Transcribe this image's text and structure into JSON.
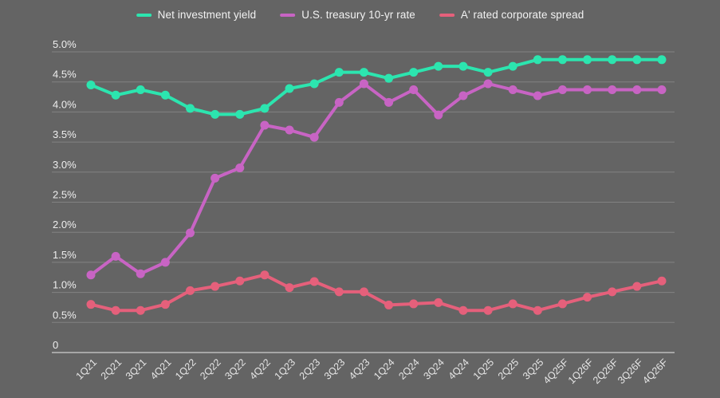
{
  "colors": {
    "background": "#646464",
    "gridline": "#828282",
    "baseline": "#bcbcbc",
    "y_tick_text": "#eeeeee",
    "x_tick_text": "#e6e6e6",
    "legend_text": "#f2f2f2",
    "series_teal": "#2ce5af",
    "series_purple": "#c864c4",
    "series_pink": "#e5607b"
  },
  "legend": {
    "items": [
      {
        "label": "Net investment yield",
        "color": "#2ce5af"
      },
      {
        "label": "U.S. treasury 10-yr rate",
        "color": "#c864c4"
      },
      {
        "label": "A' rated corporate spread",
        "color": "#e5607b"
      }
    ]
  },
  "axes": {
    "y_tick_labels": [
      "5.0%",
      "4.5%",
      "4.0%",
      "3.5%",
      "3.0%",
      "2.5%",
      "2.0%",
      "1.5%",
      "1.0%",
      "0.5%",
      "0"
    ],
    "y_tick_values": [
      5.0,
      4.5,
      4.0,
      3.5,
      3.0,
      2.5,
      2.0,
      1.5,
      1.0,
      0.5,
      0
    ]
  },
  "chart_data": {
    "type": "line",
    "title": "",
    "xlabel": "",
    "ylabel": "",
    "ylim": [
      0,
      5.0
    ],
    "y_tick_step": 0.5,
    "grid": true,
    "legend_position": "top",
    "categories": [
      "1Q21",
      "2Q21",
      "3Q21",
      "4Q21",
      "1Q22",
      "2Q22",
      "3Q22",
      "4Q22",
      "1Q23",
      "2Q23",
      "3Q23",
      "4Q23",
      "1Q24",
      "2Q24",
      "3Q24",
      "4Q24",
      "1Q25",
      "2Q25",
      "3Q25",
      "4Q25F",
      "1Q26F",
      "2Q26F",
      "3Q26F",
      "4Q26F"
    ],
    "series": [
      {
        "name": "Net investment yield",
        "color": "#2ce5af",
        "values": [
          4.45,
          4.28,
          4.37,
          4.28,
          4.06,
          3.96,
          3.96,
          4.06,
          4.39,
          4.47,
          4.66,
          4.66,
          4.56,
          4.66,
          4.76,
          4.76,
          4.66,
          4.76,
          4.87,
          4.87,
          4.87,
          4.87,
          4.87,
          4.87
        ]
      },
      {
        "name": "U.S. treasury 10-yr rate",
        "color": "#c864c4",
        "values": [
          1.29,
          1.6,
          1.31,
          1.5,
          1.99,
          2.9,
          3.07,
          3.78,
          3.7,
          3.58,
          4.16,
          4.47,
          4.16,
          4.37,
          3.95,
          4.27,
          4.47,
          4.37,
          4.27,
          4.37,
          4.37,
          4.37,
          4.37,
          4.37
        ]
      },
      {
        "name": "A' rated corporate spread",
        "color": "#e5607b",
        "values": [
          0.8,
          0.7,
          0.7,
          0.8,
          1.03,
          1.1,
          1.19,
          1.29,
          1.08,
          1.18,
          1.01,
          1.01,
          0.79,
          0.81,
          0.83,
          0.7,
          0.7,
          0.81,
          0.7,
          0.81,
          0.92,
          1.01,
          1.1,
          1.19
        ]
      }
    ]
  }
}
